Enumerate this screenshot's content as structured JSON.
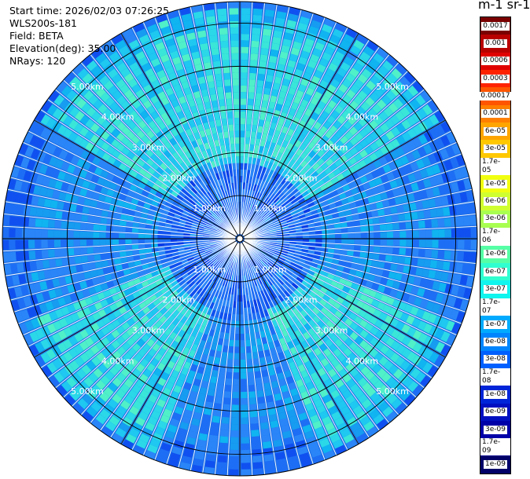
{
  "header": {
    "start_time": "Start time: 2026/02/03 07:26:25",
    "instrument": "WLS200s-181",
    "field": "Field: BETA",
    "elevation": "Elevation(deg): 35.00",
    "nrays": "NRays: 120"
  },
  "colorbar": {
    "title": "m-1 sr-1",
    "labels": [
      "0.0017",
      "0.001",
      "0.0006",
      "0.0003",
      "0.00017",
      "0.0001",
      "6e-05",
      "3e-05",
      "1.7e-05",
      "1e-05",
      "6e-06",
      "3e-06",
      "1.7e-06",
      "1e-06",
      "6e-07",
      "3e-07",
      "1.7e-07",
      "1e-07",
      "6e-08",
      "3e-08",
      "1.7e-08",
      "1e-08",
      "6e-09",
      "3e-09",
      "1.7e-09",
      "1e-09"
    ],
    "colors": [
      "#7a0000",
      "#b80000",
      "#e00000",
      "#ff2200",
      "#ff5500",
      "#ff7f00",
      "#ffa500",
      "#ffc800",
      "#ffe600",
      "#f0ff10",
      "#d0ff30",
      "#a8ff50",
      "#80ff7a",
      "#55ffa5",
      "#30ffd0",
      "#10f5ee",
      "#00d0ff",
      "#00aaff",
      "#0085ff",
      "#0060ff",
      "#0040f0",
      "#0025d8",
      "#0010c0",
      "#0000a8",
      "#000088",
      "#000068"
    ]
  },
  "chart_data": {
    "type": "heatmap",
    "projection": "polar (PPI scan)",
    "field": "BETA",
    "nrays": 120,
    "elevation_deg": 35.0,
    "range_rings_km": [
      1,
      2,
      3,
      4,
      5
    ],
    "ring_labels": [
      "1.00km",
      "2.00km",
      "3.00km",
      "4.00km",
      "5.00km"
    ],
    "azimuth_lines_deg": [
      0,
      30,
      60,
      90,
      120,
      150,
      180,
      210,
      240,
      270,
      300,
      330
    ],
    "max_range_km": 5.5,
    "colorscale": "log10",
    "value_range": [
      1e-09,
      0.0017
    ],
    "dominant_band": "1e-08 to 1.7e-06",
    "high_signal_azimuth_sectors_deg": [
      [
        300,
        60
      ],
      [
        110,
        160
      ],
      [
        200,
        250
      ]
    ]
  }
}
